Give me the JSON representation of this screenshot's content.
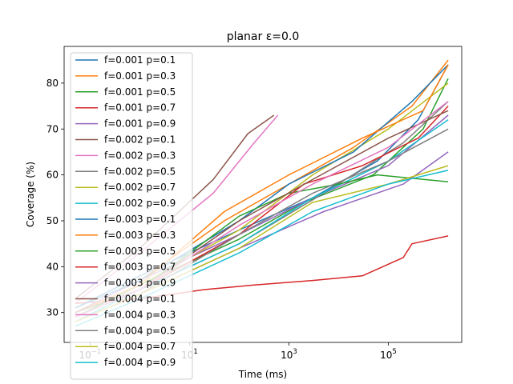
{
  "chart_data": {
    "type": "line",
    "title": "planar ε=0.0",
    "xlabel": "Time (ms)",
    "ylabel": "Coverage (%)",
    "xscale": "log",
    "xlim": [
      0.03,
      3000000
    ],
    "ylim": [
      23.5,
      88
    ],
    "xticks": [
      {
        "value": 0.1,
        "base": "10",
        "exp": "−1"
      },
      {
        "value": 10,
        "base": "10",
        "exp": "1"
      },
      {
        "value": 1000,
        "base": "10",
        "exp": "3"
      },
      {
        "value": 100000,
        "base": "10",
        "exp": "5"
      }
    ],
    "yticks": [
      30,
      40,
      50,
      60,
      70,
      80
    ],
    "grid": false,
    "legend_position": "upper-left",
    "colors": [
      "#1f77b4",
      "#ff7f0e",
      "#2ca02c",
      "#d62728",
      "#9467bd",
      "#8c564b",
      "#e377c2",
      "#7f7f7f",
      "#bcbd22",
      "#17becf"
    ],
    "series": [
      {
        "name": "f=0.001 p=0.1",
        "x": [
          0.05,
          1,
          100,
          3000,
          60000,
          400000,
          1600000
        ],
        "y": [
          31,
          38,
          48,
          55,
          63,
          72,
          84
        ]
      },
      {
        "name": "f=0.001 p=0.3",
        "x": [
          0.05,
          1,
          50,
          1000,
          20000,
          300000,
          1600000
        ],
        "y": [
          30,
          37,
          50,
          58,
          66,
          75,
          85
        ]
      },
      {
        "name": "f=0.001 p=0.5",
        "x": [
          0.05,
          1,
          100,
          2000,
          50000,
          500000,
          1600000
        ],
        "y": [
          29,
          36,
          46,
          54,
          60,
          70,
          81
        ]
      },
      {
        "name": "f=0.001 p=0.7",
        "x": [
          0.05,
          1,
          20,
          200,
          3000,
          30000,
          200000,
          300000,
          1600000
        ],
        "y": [
          32,
          33,
          35,
          36,
          37,
          38,
          42,
          45,
          46.7
        ]
      },
      {
        "name": "f=0.001 p=0.9",
        "x": [
          0.05,
          1,
          100,
          3000,
          100000,
          1600000
        ],
        "y": [
          30,
          37,
          47,
          55,
          62,
          73
        ]
      },
      {
        "name": "f=0.002 p=0.1",
        "x": [
          0.05,
          1,
          30,
          150,
          500
        ],
        "y": [
          33,
          44,
          59,
          69,
          73
        ]
      },
      {
        "name": "f=0.002 p=0.3",
        "x": [
          0.05,
          1,
          30,
          200,
          600
        ],
        "y": [
          32,
          43,
          56,
          67,
          73
        ]
      },
      {
        "name": "f=0.002 p=0.5",
        "x": [
          0.05,
          1,
          100,
          5000,
          200000,
          1600000
        ],
        "y": [
          29,
          35,
          45,
          56,
          67,
          76
        ]
      },
      {
        "name": "f=0.002 p=0.7",
        "x": [
          0.05,
          1,
          100,
          3000,
          100000,
          1600000
        ],
        "y": [
          30,
          36,
          48,
          60,
          70,
          80
        ]
      },
      {
        "name": "f=0.002 p=0.9",
        "x": [
          0.05,
          1,
          100,
          3000,
          100000,
          1600000
        ],
        "y": [
          28,
          35,
          45,
          55,
          63,
          72
        ]
      },
      {
        "name": "f=0.003 p=0.1",
        "x": [
          0.05,
          1,
          100,
          1000,
          20000,
          300000,
          1600000
        ],
        "y": [
          31,
          37,
          50,
          58,
          65,
          76,
          84
        ]
      },
      {
        "name": "f=0.003 p=0.3",
        "x": [
          0.05,
          1,
          50,
          1000,
          30000,
          500000,
          1600000
        ],
        "y": [
          30,
          36,
          52,
          60,
          68,
          74,
          84
        ]
      },
      {
        "name": "f=0.003 p=0.5",
        "x": [
          0.05,
          1,
          100,
          1000,
          10000,
          60000,
          1600000
        ],
        "y": [
          29,
          35,
          51,
          56,
          58,
          60,
          58.5
        ]
      },
      {
        "name": "f=0.003 p=0.7",
        "x": [
          0.05,
          1,
          100,
          2000,
          30000,
          400000,
          1600000
        ],
        "y": [
          29,
          35,
          47,
          58,
          62,
          68,
          75
        ]
      },
      {
        "name": "f=0.003 p=0.9",
        "x": [
          0.05,
          1,
          100,
          5000,
          200000,
          1600000
        ],
        "y": [
          28,
          34,
          44,
          52,
          58,
          65
        ]
      },
      {
        "name": "f=0.004 p=0.1",
        "x": [
          0.05,
          1,
          100,
          3000,
          100000,
          1600000
        ],
        "y": [
          30,
          35,
          50,
          59,
          68,
          74
        ]
      },
      {
        "name": "f=0.004 p=0.3",
        "x": [
          0.05,
          1,
          100,
          3000,
          100000,
          1600000
        ],
        "y": [
          29,
          35,
          49,
          58,
          66,
          76
        ]
      },
      {
        "name": "f=0.004 p=0.5",
        "x": [
          0.05,
          1,
          100,
          3000,
          100000,
          1600000
        ],
        "y": [
          28,
          34,
          47,
          56,
          63,
          70
        ]
      },
      {
        "name": "f=0.004 p=0.7",
        "x": [
          0.05,
          1,
          100,
          3000,
          100000,
          1600000
        ],
        "y": [
          28,
          34,
          44,
          54,
          58,
          62
        ]
      },
      {
        "name": "f=0.004 p=0.9",
        "x": [
          0.05,
          1,
          100,
          3000,
          100000,
          1600000
        ],
        "y": [
          27,
          33,
          43,
          52,
          58,
          61
        ]
      }
    ]
  }
}
